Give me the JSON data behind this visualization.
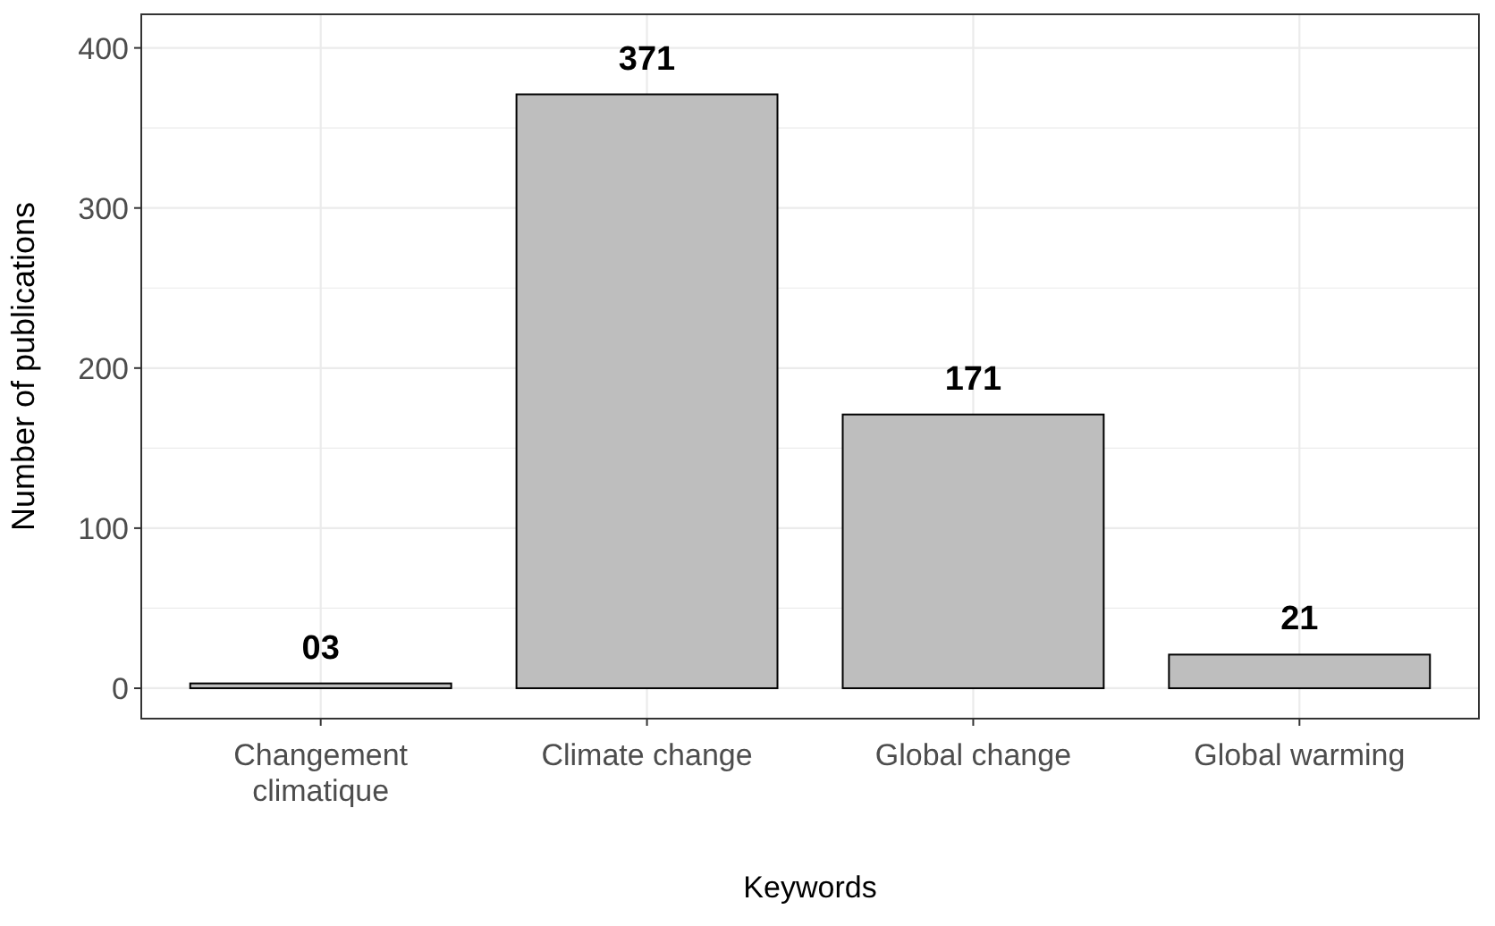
{
  "chart_data": {
    "type": "bar",
    "xlabel": "Keywords",
    "ylabel": "Number of publications",
    "categories": [
      "Changement\nclimatique",
      "Climate change",
      "Global change",
      "Global warming"
    ],
    "values": [
      3,
      371,
      171,
      21
    ],
    "value_labels": [
      "03",
      "371",
      "171",
      "21"
    ],
    "color": "#bebebe",
    "ylim": [
      -19,
      421
    ],
    "yticks": [
      0,
      {
        "value": 50,
        "label": null
      },
      100,
      {
        "value": 150,
        "label": null
      },
      200,
      {
        "value": 250,
        "label": null
      },
      300,
      {
        "value": 350,
        "label": null
      },
      400
    ],
    "grid": true
  }
}
